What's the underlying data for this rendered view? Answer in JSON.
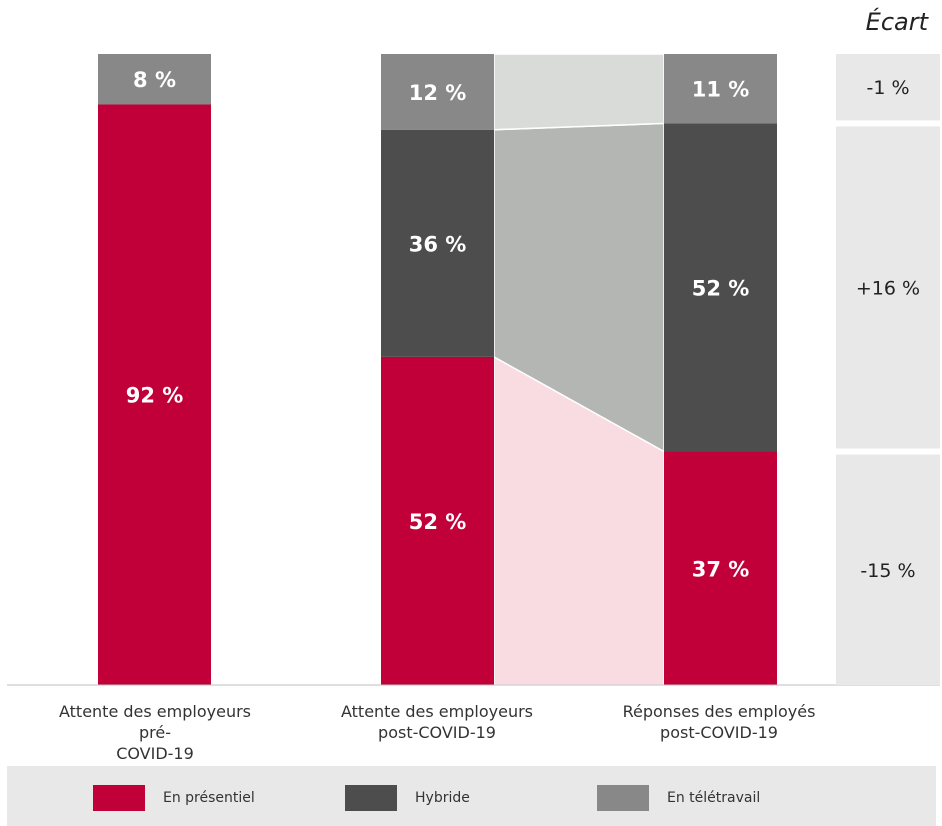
{
  "chart_data": {
    "type": "bar",
    "stacked": true,
    "categories": [
      "Attente des employeurs pré-COVID-19",
      "Attente des employeurs post-COVID-19",
      "Réponses des employés post-COVID-19"
    ],
    "series": [
      {
        "name": "En présentiel",
        "color": "#c1003a",
        "values": [
          92,
          52,
          37
        ],
        "labels": [
          "92 %",
          "52 %",
          "37 %"
        ]
      },
      {
        "name": "Hybride",
        "color": "#4d4d4d",
        "values": [
          0,
          36,
          52
        ],
        "labels": [
          "",
          "36 %",
          "52 %"
        ]
      },
      {
        "name": "En télétravail",
        "color": "#888888",
        "values": [
          8,
          12,
          11
        ],
        "labels": [
          "8 %",
          "12 %",
          "11 %"
        ]
      }
    ],
    "ylim": [
      0,
      100
    ],
    "gap": {
      "title": "Écart",
      "values": [
        "-1  %",
        "+16  %",
        "-15  %"
      ]
    },
    "legend_position": "bottom"
  },
  "labels": {
    "cat0_line1": "Attente des employeurs pré-",
    "cat0_line2": "COVID-19",
    "cat1_line1": "Attente des employeurs",
    "cat1_line2": "post-COVID-19",
    "cat2_line1": "Réponses des employés",
    "cat2_line2": "post-COVID-19"
  },
  "colors": {
    "presentiel": "#c1003a",
    "hybride": "#4d4d4d",
    "teletravail": "#888888",
    "connector_red": "#f9dbe2",
    "connector_dark": "#b4b6b3",
    "connector_light": "#d9dbd9",
    "gap_bg": "#e8e8e8"
  }
}
